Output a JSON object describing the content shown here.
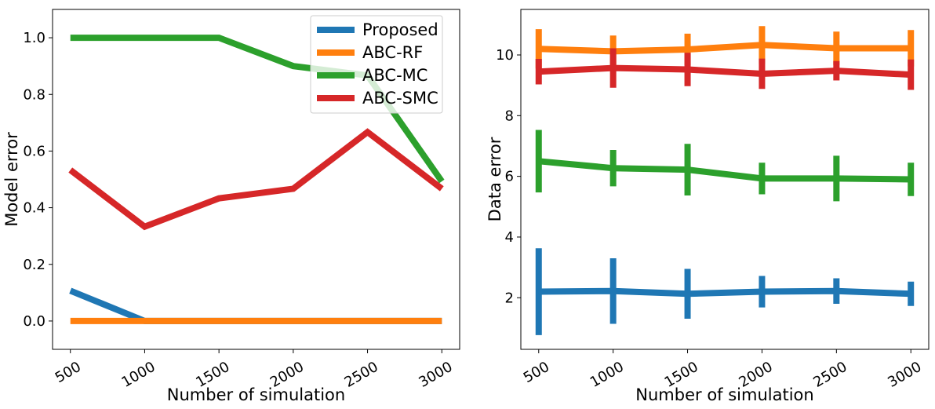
{
  "chart_data": [
    {
      "type": "line",
      "x": [
        500,
        1000,
        1500,
        2000,
        2500,
        3000
      ],
      "xlabel": "Number of simulation",
      "ylabel": "Model error",
      "xlim": [
        380,
        3120
      ],
      "ylim": [
        -0.1,
        1.1
      ],
      "xticks": [
        500,
        1000,
        1500,
        2000,
        2500,
        3000
      ],
      "xtick_labels": [
        "500",
        "1000",
        "1500",
        "2000",
        "2500",
        "3000"
      ],
      "xtick_rotation": 30,
      "yticks": [
        0.0,
        0.2,
        0.4,
        0.6,
        0.8,
        1.0
      ],
      "ytick_labels": [
        "0.0",
        "0.2",
        "0.4",
        "0.6",
        "0.8",
        "1.0"
      ],
      "grid": false,
      "legend_position": "top-right",
      "series": [
        {
          "name": "Proposed",
          "color": "#1f77b4",
          "values": [
            0.107,
            0.0,
            0.0,
            0.0,
            0.0,
            0.0
          ]
        },
        {
          "name": "ABC-RF",
          "color": "#ff7f0e",
          "values": [
            0.0,
            0.0,
            0.0,
            0.0,
            0.0,
            0.0
          ]
        },
        {
          "name": "ABC-MC",
          "color": "#2ca02c",
          "values": [
            1.0,
            1.0,
            1.0,
            0.9,
            0.867,
            0.493
          ]
        },
        {
          "name": "ABC-SMC",
          "color": "#d62728",
          "values": [
            0.533,
            0.333,
            0.433,
            0.467,
            0.667,
            0.467
          ]
        }
      ]
    },
    {
      "type": "line",
      "x": [
        500,
        1000,
        1500,
        2000,
        2500,
        3000
      ],
      "xlabel": "Number of simulation",
      "ylabel": "Data error",
      "xlim": [
        380,
        3120
      ],
      "ylim": [
        0.3,
        11.5
      ],
      "xticks": [
        500,
        1000,
        1500,
        2000,
        2500,
        3000
      ],
      "xtick_labels": [
        "500",
        "1000",
        "1500",
        "2000",
        "2500",
        "3000"
      ],
      "xtick_rotation": 30,
      "yticks": [
        2,
        4,
        6,
        8,
        10
      ],
      "ytick_labels": [
        "2",
        "4",
        "6",
        "8",
        "10"
      ],
      "grid": false,
      "series": [
        {
          "color": "#1f77b4",
          "values": [
            2.2,
            2.22,
            2.13,
            2.2,
            2.22,
            2.13
          ],
          "errors": [
            1.43,
            1.08,
            0.82,
            0.52,
            0.42,
            0.4
          ]
        },
        {
          "color": "#ff7f0e",
          "values": [
            10.2,
            10.12,
            10.18,
            10.33,
            10.22,
            10.22
          ],
          "errors": [
            0.65,
            0.52,
            0.52,
            0.62,
            0.55,
            0.6
          ]
        },
        {
          "color": "#2ca02c",
          "values": [
            6.5,
            6.27,
            6.22,
            5.93,
            5.93,
            5.9
          ],
          "errors": [
            1.03,
            0.6,
            0.85,
            0.52,
            0.75,
            0.55
          ]
        },
        {
          "color": "#d62728",
          "values": [
            9.45,
            9.57,
            9.52,
            9.38,
            9.48,
            9.35
          ],
          "errors": [
            0.42,
            0.65,
            0.55,
            0.5,
            0.32,
            0.5
          ]
        }
      ]
    }
  ]
}
